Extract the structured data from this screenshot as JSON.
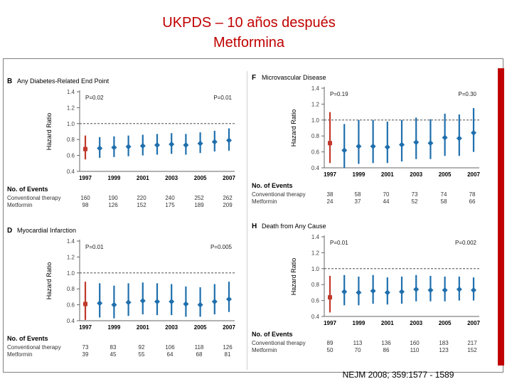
{
  "slide": {
    "title_line1": "UKPDS – 10 años después",
    "title_line2": "Metformina",
    "citation": "NEJM 2008; 359:1577 - 1589"
  },
  "colors": {
    "title": "#c00000",
    "conventional_marker": "#c0392b",
    "metformin_marker": "#1f6fad",
    "ref_line": "#333333",
    "axis": "#666666"
  },
  "chart_data": [
    {
      "type": "scatter",
      "panel_letter": "B",
      "title": "Any Diabetes-Related End Point",
      "ylabel": "Hazard Ratio",
      "ylim": [
        0.4,
        1.4
      ],
      "yticks": [
        "1.4",
        "1.2",
        "1.0",
        "0.8",
        "0.6",
        "0.4"
      ],
      "ref_line": 1.0,
      "categories": [
        "1997",
        "1999",
        "2001",
        "2003",
        "2005",
        "2007"
      ],
      "p_left": "P=0.02",
      "p_right": "P=0.01",
      "points": [
        {
          "x": 1997.0,
          "hr": 0.68,
          "lo": 0.55,
          "hi": 0.85,
          "color": "red"
        },
        {
          "x": 1998.0,
          "hr": 0.69,
          "lo": 0.57,
          "hi": 0.83,
          "color": "blue"
        },
        {
          "x": 1999.0,
          "hr": 0.7,
          "lo": 0.58,
          "hi": 0.84,
          "color": "blue"
        },
        {
          "x": 2000.0,
          "hr": 0.71,
          "lo": 0.59,
          "hi": 0.85,
          "color": "blue"
        },
        {
          "x": 2001.0,
          "hr": 0.72,
          "lo": 0.6,
          "hi": 0.86,
          "color": "blue"
        },
        {
          "x": 2002.0,
          "hr": 0.73,
          "lo": 0.61,
          "hi": 0.87,
          "color": "blue"
        },
        {
          "x": 2003.0,
          "hr": 0.74,
          "lo": 0.62,
          "hi": 0.88,
          "color": "blue"
        },
        {
          "x": 2004.0,
          "hr": 0.73,
          "lo": 0.61,
          "hi": 0.87,
          "color": "blue"
        },
        {
          "x": 2005.0,
          "hr": 0.75,
          "lo": 0.63,
          "hi": 0.89,
          "color": "blue"
        },
        {
          "x": 2006.0,
          "hr": 0.77,
          "lo": 0.65,
          "hi": 0.91,
          "color": "blue"
        },
        {
          "x": 2007.0,
          "hr": 0.79,
          "lo": 0.66,
          "hi": 0.94,
          "color": "blue"
        }
      ],
      "events": {
        "header": "No. of Events",
        "rows": [
          {
            "label": "Conventional therapy",
            "values": [
              "160",
              "190",
              "220",
              "240",
              "252",
              "262"
            ]
          },
          {
            "label": "Metformin",
            "values": [
              "98",
              "126",
              "152",
              "175",
              "189",
              "209"
            ]
          }
        ]
      }
    },
    {
      "type": "scatter",
      "panel_letter": "F",
      "title": "Microvascular Disease",
      "ylabel": "Hazard Ratio",
      "ylim": [
        0.4,
        1.4
      ],
      "yticks": [
        "1.4",
        "1.2",
        "1.0",
        "0.8",
        "0.6",
        "0.4"
      ],
      "ref_line": 1.0,
      "categories": [
        "1997",
        "1999",
        "2001",
        "2003",
        "2005",
        "2007"
      ],
      "p_left": "P=0.19",
      "p_right": "P=0.30",
      "points": [
        {
          "x": 1997.0,
          "hr": 0.71,
          "lo": 0.46,
          "hi": 1.1,
          "color": "red"
        },
        {
          "x": 1998.0,
          "hr": 0.62,
          "lo": 0.4,
          "hi": 0.95,
          "color": "blue"
        },
        {
          "x": 1999.0,
          "hr": 0.67,
          "lo": 0.45,
          "hi": 1.0,
          "color": "blue"
        },
        {
          "x": 2000.0,
          "hr": 0.67,
          "lo": 0.46,
          "hi": 1.0,
          "color": "blue"
        },
        {
          "x": 2001.0,
          "hr": 0.66,
          "lo": 0.46,
          "hi": 0.98,
          "color": "blue"
        },
        {
          "x": 2002.0,
          "hr": 0.69,
          "lo": 0.48,
          "hi": 1.0,
          "color": "blue"
        },
        {
          "x": 2003.0,
          "hr": 0.72,
          "lo": 0.51,
          "hi": 1.03,
          "color": "blue"
        },
        {
          "x": 2004.0,
          "hr": 0.71,
          "lo": 0.51,
          "hi": 1.01,
          "color": "blue"
        },
        {
          "x": 2005.0,
          "hr": 0.78,
          "lo": 0.55,
          "hi": 1.08,
          "color": "blue"
        },
        {
          "x": 2006.0,
          "hr": 0.77,
          "lo": 0.55,
          "hi": 1.07,
          "color": "blue"
        },
        {
          "x": 2007.0,
          "hr": 0.84,
          "lo": 0.6,
          "hi": 1.15,
          "color": "blue"
        }
      ],
      "events": {
        "header": "No. of Events",
        "rows": [
          {
            "label": "Conventional therapy",
            "values": [
              "38",
              "58",
              "70",
              "73",
              "74",
              "78"
            ]
          },
          {
            "label": "Metformin",
            "values": [
              "24",
              "37",
              "44",
              "52",
              "58",
              "66"
            ]
          }
        ]
      }
    },
    {
      "type": "scatter",
      "panel_letter": "D",
      "title": "Myocardial Infarction",
      "ylabel": "Hazard Ratio",
      "ylim": [
        0.4,
        1.4
      ],
      "yticks": [
        "1.4",
        "1.2",
        "1.0",
        "0.8",
        "0.6",
        "0.4"
      ],
      "ref_line": 1.0,
      "categories": [
        "1997",
        "1999",
        "2001",
        "2003",
        "2005",
        "2007"
      ],
      "p_left": "P=0.01",
      "p_right": "P=0.005",
      "points": [
        {
          "x": 1997.0,
          "hr": 0.61,
          "lo": 0.41,
          "hi": 0.89,
          "color": "red"
        },
        {
          "x": 1998.0,
          "hr": 0.62,
          "lo": 0.44,
          "hi": 0.87,
          "color": "blue"
        },
        {
          "x": 1999.0,
          "hr": 0.6,
          "lo": 0.43,
          "hi": 0.84,
          "color": "blue"
        },
        {
          "x": 2000.0,
          "hr": 0.63,
          "lo": 0.46,
          "hi": 0.87,
          "color": "blue"
        },
        {
          "x": 2001.0,
          "hr": 0.65,
          "lo": 0.48,
          "hi": 0.88,
          "color": "blue"
        },
        {
          "x": 2002.0,
          "hr": 0.64,
          "lo": 0.47,
          "hi": 0.87,
          "color": "blue"
        },
        {
          "x": 2003.0,
          "hr": 0.64,
          "lo": 0.47,
          "hi": 0.86,
          "color": "blue"
        },
        {
          "x": 2004.0,
          "hr": 0.61,
          "lo": 0.45,
          "hi": 0.83,
          "color": "blue"
        },
        {
          "x": 2005.0,
          "hr": 0.6,
          "lo": 0.45,
          "hi": 0.82,
          "color": "blue"
        },
        {
          "x": 2006.0,
          "hr": 0.64,
          "lo": 0.48,
          "hi": 0.86,
          "color": "blue"
        },
        {
          "x": 2007.0,
          "hr": 0.67,
          "lo": 0.51,
          "hi": 0.89,
          "color": "blue"
        }
      ],
      "events": {
        "header": "No. of Events",
        "rows": [
          {
            "label": "Conventional therapy",
            "values": [
              "73",
              "83",
              "92",
              "106",
              "118",
              "126"
            ]
          },
          {
            "label": "Metformin",
            "values": [
              "39",
              "45",
              "55",
              "64",
              "68",
              "81"
            ]
          }
        ]
      }
    },
    {
      "type": "scatter",
      "panel_letter": "H",
      "title": "Death from Any Cause",
      "ylabel": "Hazard Ratio",
      "ylim": [
        0.4,
        1.4
      ],
      "yticks": [
        "1.4",
        "1.2",
        "1.0",
        "0.8",
        "0.6",
        "0.4"
      ],
      "ref_line": 1.0,
      "categories": [
        "1997",
        "1999",
        "2001",
        "2003",
        "2005",
        "2007"
      ],
      "p_left": "P=0.01",
      "p_right": "P=0.002",
      "points": [
        {
          "x": 1997.0,
          "hr": 0.64,
          "lo": 0.45,
          "hi": 0.91,
          "color": "red"
        },
        {
          "x": 1998.0,
          "hr": 0.71,
          "lo": 0.54,
          "hi": 0.92,
          "color": "blue"
        },
        {
          "x": 1999.0,
          "hr": 0.7,
          "lo": 0.54,
          "hi": 0.9,
          "color": "blue"
        },
        {
          "x": 2000.0,
          "hr": 0.72,
          "lo": 0.56,
          "hi": 0.92,
          "color": "blue"
        },
        {
          "x": 2001.0,
          "hr": 0.7,
          "lo": 0.55,
          "hi": 0.89,
          "color": "blue"
        },
        {
          "x": 2002.0,
          "hr": 0.71,
          "lo": 0.56,
          "hi": 0.9,
          "color": "blue"
        },
        {
          "x": 2003.0,
          "hr": 0.74,
          "lo": 0.59,
          "hi": 0.92,
          "color": "blue"
        },
        {
          "x": 2004.0,
          "hr": 0.73,
          "lo": 0.59,
          "hi": 0.91,
          "color": "blue"
        },
        {
          "x": 2005.0,
          "hr": 0.73,
          "lo": 0.59,
          "hi": 0.9,
          "color": "blue"
        },
        {
          "x": 2006.0,
          "hr": 0.74,
          "lo": 0.6,
          "hi": 0.9,
          "color": "blue"
        },
        {
          "x": 2007.0,
          "hr": 0.73,
          "lo": 0.6,
          "hi": 0.89,
          "color": "blue"
        }
      ],
      "events": {
        "header": "No. of Events",
        "rows": [
          {
            "label": "Conventional therapy",
            "values": [
              "89",
              "113",
              "136",
              "160",
              "183",
              "217"
            ]
          },
          {
            "label": "Metformin",
            "values": [
              "50",
              "70",
              "86",
              "110",
              "123",
              "152"
            ]
          }
        ]
      }
    }
  ]
}
